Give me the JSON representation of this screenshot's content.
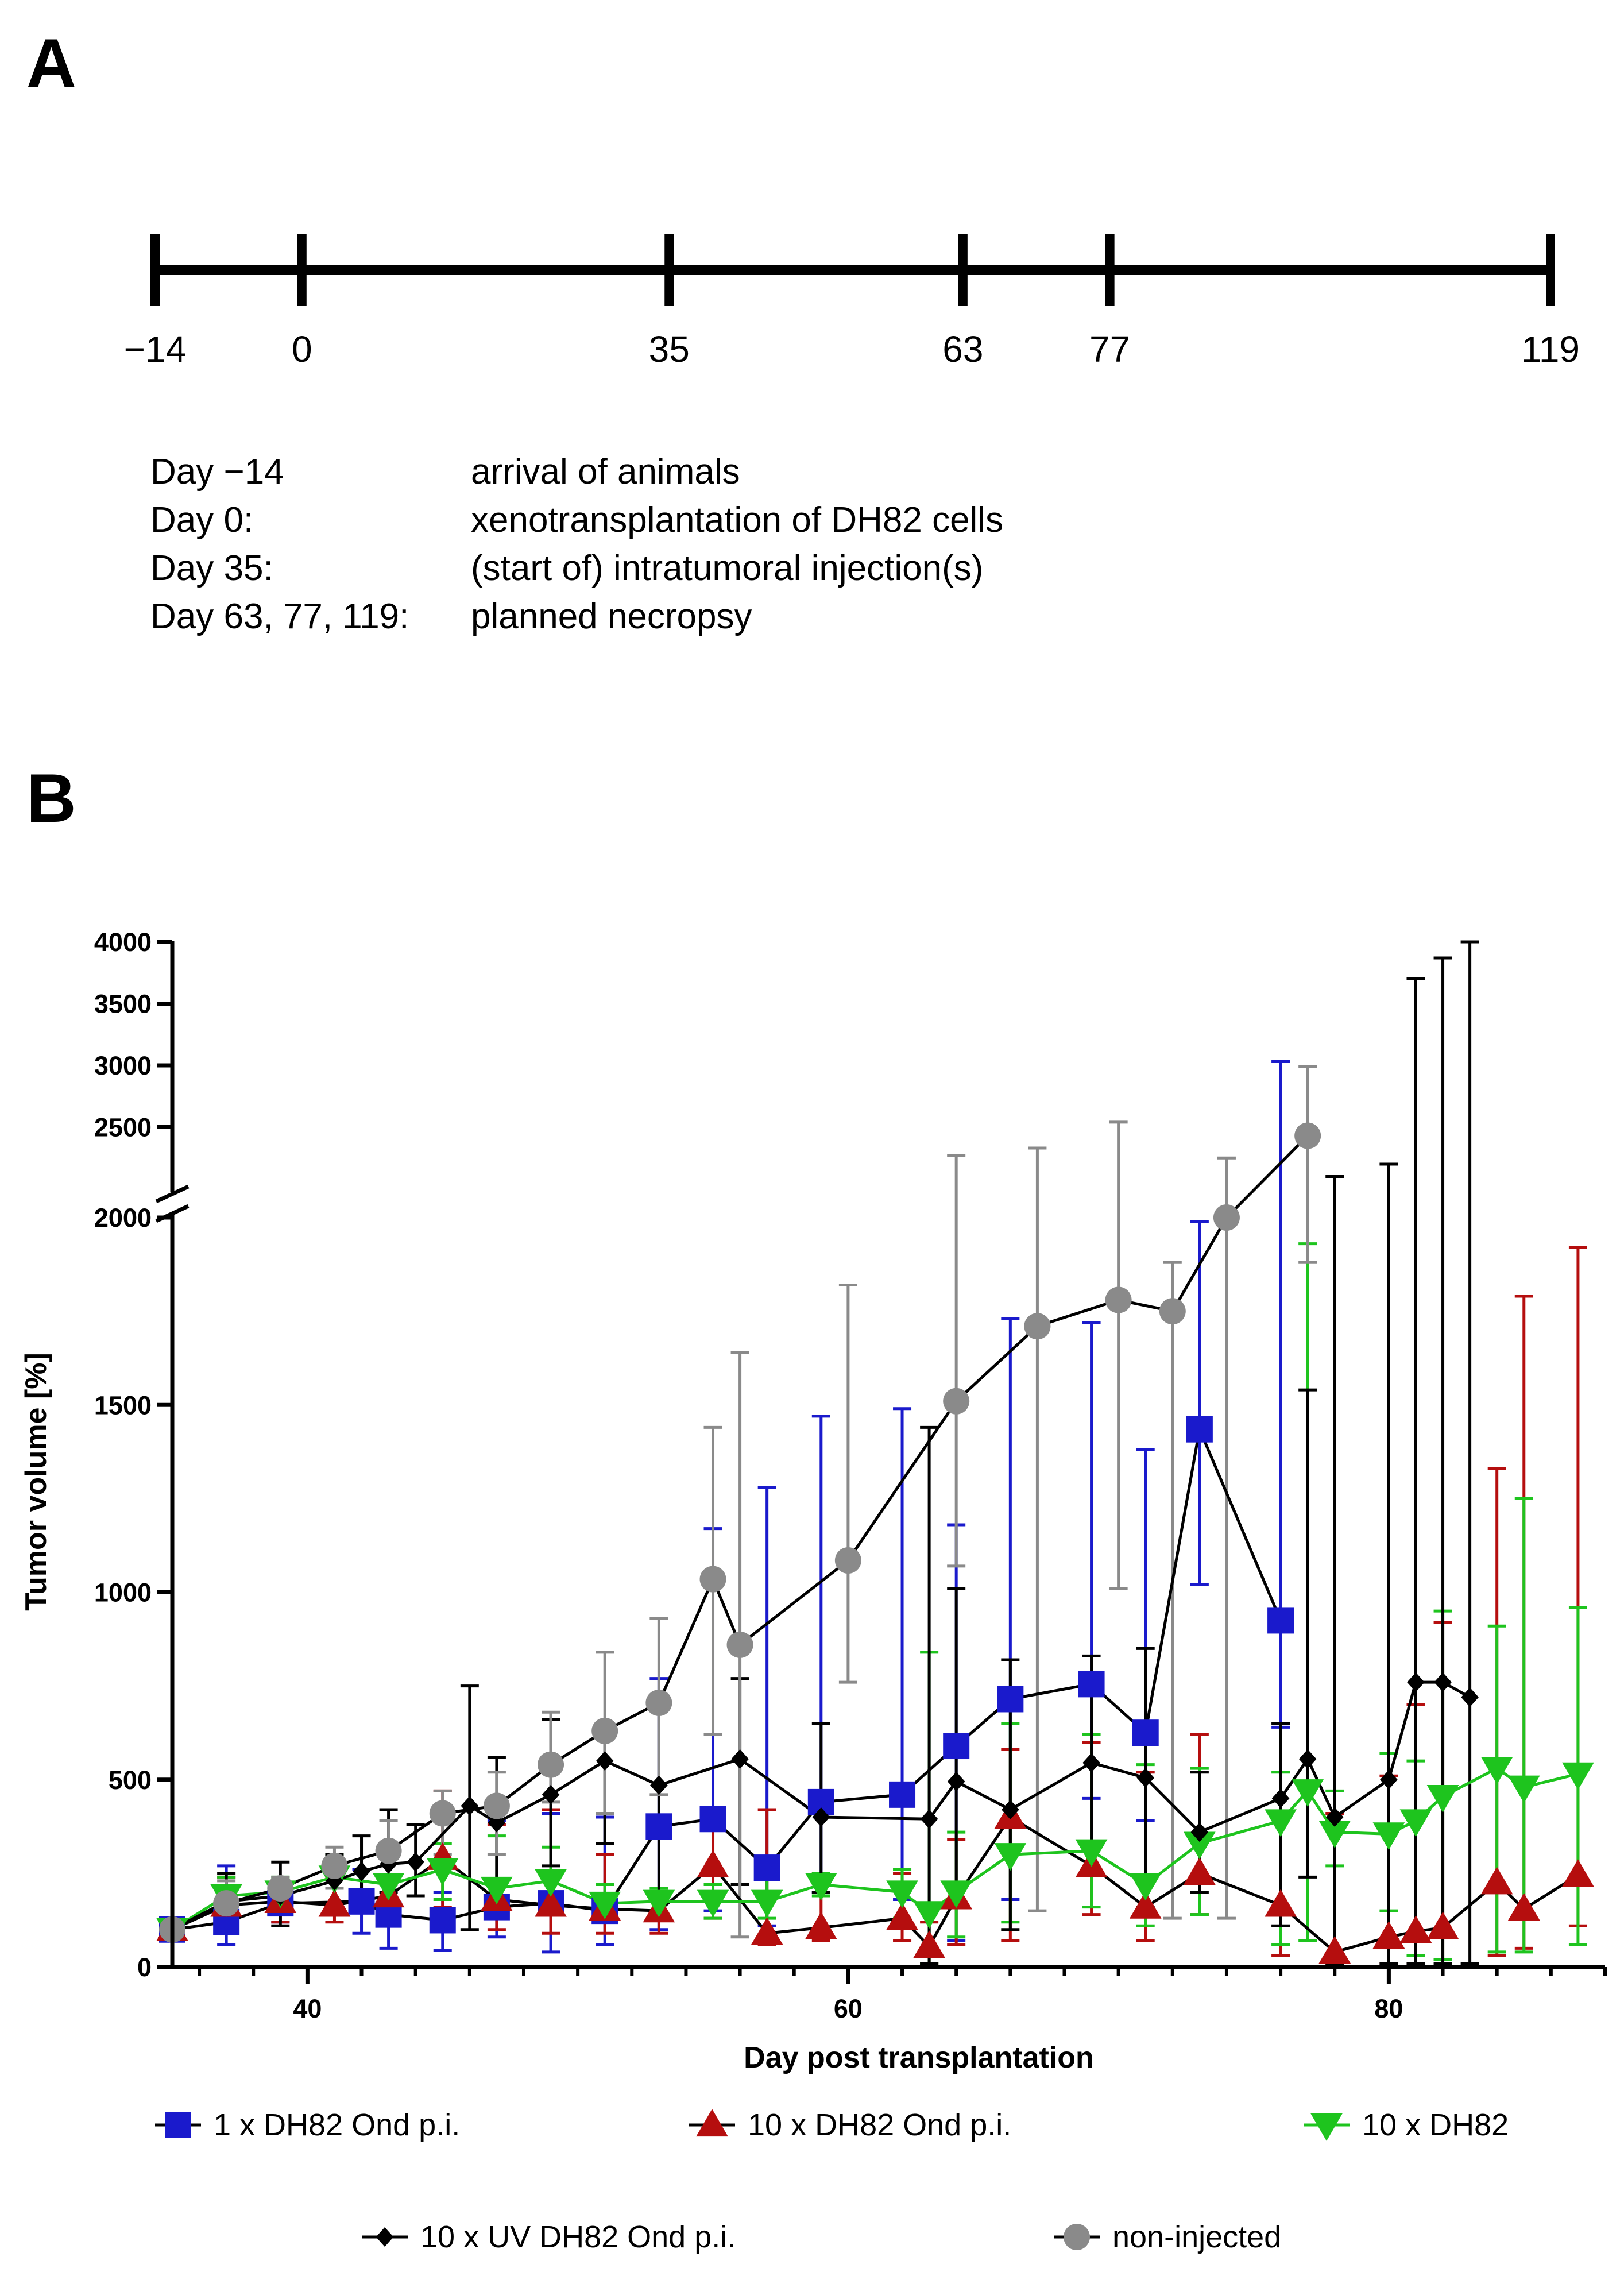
{
  "panel_a": {
    "letter": "A",
    "timeline": {
      "ticks": [
        {
          "value": -14,
          "label": "−14"
        },
        {
          "value": 0,
          "label": "0"
        },
        {
          "value": 35,
          "label": "35"
        },
        {
          "value": 63,
          "label": "63"
        },
        {
          "value": 77,
          "label": "77"
        },
        {
          "value": 119,
          "label": "119"
        }
      ]
    },
    "legend": [
      {
        "day": "Day −14",
        "desc": "arrival of animals"
      },
      {
        "day": "Day 0:",
        "desc": "xenotransplantation of DH82 cells"
      },
      {
        "day": "Day 35:",
        "desc": "(start of) intratumoral injection(s)"
      },
      {
        "day": "Day 63, 77, 119:",
        "desc": "planned necropsy"
      }
    ]
  },
  "panel_b": {
    "letter": "B"
  },
  "chart_data": {
    "type": "line",
    "xlabel": "Day post transplantation",
    "ylabel": "Tumor volume [%]",
    "xlim": [
      35,
      88
    ],
    "x_ticks": [
      40,
      60,
      80
    ],
    "y_axis": {
      "broken": true,
      "lower_range": [
        0,
        2000
      ],
      "upper_range": [
        2000,
        4000
      ],
      "lower_ticks": [
        0,
        500,
        1000,
        1500,
        2000
      ],
      "upper_ticks": [
        2000,
        2500,
        3000,
        3500,
        4000
      ]
    },
    "series": [
      {
        "name": "1 x DH82 Ond p.i.",
        "color": "#1a1acc",
        "marker": "square",
        "points": [
          {
            "x": 35,
            "y": 100,
            "lo": 100,
            "hi": 100
          },
          {
            "x": 37,
            "y": 120,
            "lo": 60,
            "hi": 270
          },
          {
            "x": 39,
            "y": 170,
            "lo": 120,
            "hi": 210
          },
          {
            "x": 42,
            "y": 175,
            "lo": 90,
            "hi": 260
          },
          {
            "x": 43,
            "y": 140,
            "lo": 50,
            "hi": 290
          },
          {
            "x": 45,
            "y": 125,
            "lo": 45,
            "hi": 200
          },
          {
            "x": 47,
            "y": 160,
            "lo": 80,
            "hi": 390
          },
          {
            "x": 49,
            "y": 170,
            "lo": 40,
            "hi": 410
          },
          {
            "x": 51,
            "y": 150,
            "lo": 60,
            "hi": 400
          },
          {
            "x": 53,
            "y": 375,
            "lo": 100,
            "hi": 770
          },
          {
            "x": 55,
            "y": 395,
            "lo": 150,
            "hi": 1170
          },
          {
            "x": 57,
            "y": 265,
            "lo": 110,
            "hi": 1280
          },
          {
            "x": 59,
            "y": 440,
            "lo": 200,
            "hi": 1470
          },
          {
            "x": 62,
            "y": 460,
            "lo": 180,
            "hi": 1490
          },
          {
            "x": 64,
            "y": 590,
            "lo": 70,
            "hi": 1180
          },
          {
            "x": 66,
            "y": 715,
            "lo": 180,
            "hi": 1730
          },
          {
            "x": 69,
            "y": 755,
            "lo": 450,
            "hi": 1720
          },
          {
            "x": 71,
            "y": 625,
            "lo": 390,
            "hi": 1380
          },
          {
            "x": 73,
            "y": 1435,
            "lo": 1020,
            "hi": 1990
          },
          {
            "x": 76,
            "y": 925,
            "lo": 640,
            "hi": 3030
          }
        ]
      },
      {
        "name": "10 x DH82 Ond p.i.",
        "color": "#b50e0e",
        "marker": "triangle-up",
        "points": [
          {
            "x": 35,
            "y": 100,
            "lo": 100,
            "hi": 100
          },
          {
            "x": 37,
            "y": 165,
            "lo": 110,
            "hi": 240
          },
          {
            "x": 39,
            "y": 175,
            "lo": 120,
            "hi": 220
          },
          {
            "x": 41,
            "y": 165,
            "lo": 120,
            "hi": 240
          },
          {
            "x": 43,
            "y": 190,
            "lo": 110,
            "hi": 300
          },
          {
            "x": 45,
            "y": 290,
            "lo": 160,
            "hi": 470
          },
          {
            "x": 47,
            "y": 180,
            "lo": 100,
            "hi": 380
          },
          {
            "x": 49,
            "y": 165,
            "lo": 90,
            "hi": 420
          },
          {
            "x": 51,
            "y": 155,
            "lo": 90,
            "hi": 300
          },
          {
            "x": 53,
            "y": 150,
            "lo": 90,
            "hi": 200
          },
          {
            "x": 55,
            "y": 270,
            "lo": 130,
            "hi": 410
          },
          {
            "x": 57,
            "y": 90,
            "lo": 60,
            "hi": 420
          },
          {
            "x": 59,
            "y": 105,
            "lo": 70,
            "hi": 250
          },
          {
            "x": 62,
            "y": 130,
            "lo": 70,
            "hi": 250
          },
          {
            "x": 63,
            "y": 55,
            "lo": 10,
            "hi": 120
          },
          {
            "x": 64,
            "y": 185,
            "lo": 60,
            "hi": 340
          },
          {
            "x": 66,
            "y": 400,
            "lo": 70,
            "hi": 580
          },
          {
            "x": 69,
            "y": 270,
            "lo": 140,
            "hi": 600
          },
          {
            "x": 71,
            "y": 160,
            "lo": 70,
            "hi": 520
          },
          {
            "x": 73,
            "y": 250,
            "lo": 140,
            "hi": 620
          },
          {
            "x": 76,
            "y": 165,
            "lo": 30,
            "hi": 400
          },
          {
            "x": 78,
            "y": 40,
            "lo": 10,
            "hi": 410
          },
          {
            "x": 80,
            "y": 80,
            "lo": 10,
            "hi": 510
          },
          {
            "x": 81,
            "y": 95,
            "lo": 10,
            "hi": 700
          },
          {
            "x": 82,
            "y": 105,
            "lo": 20,
            "hi": 920
          },
          {
            "x": 84,
            "y": 225,
            "lo": 30,
            "hi": 1330
          },
          {
            "x": 85,
            "y": 155,
            "lo": 50,
            "hi": 1790
          },
          {
            "x": 87,
            "y": 245,
            "lo": 110,
            "hi": 1920
          }
        ]
      },
      {
        "name": "10 x DH82",
        "color": "#1ec41e",
        "marker": "triangle-down",
        "points": [
          {
            "x": 35,
            "y": 100,
            "lo": 100,
            "hi": 100
          },
          {
            "x": 37,
            "y": 190,
            "lo": 140,
            "hi": 240
          },
          {
            "x": 39,
            "y": 200,
            "lo": 150,
            "hi": 240
          },
          {
            "x": 41,
            "y": 240,
            "lo": 170,
            "hi": 300
          },
          {
            "x": 43,
            "y": 220,
            "lo": 150,
            "hi": 310
          },
          {
            "x": 45,
            "y": 260,
            "lo": 180,
            "hi": 330
          },
          {
            "x": 47,
            "y": 210,
            "lo": 150,
            "hi": 350
          },
          {
            "x": 49,
            "y": 230,
            "lo": 160,
            "hi": 320
          },
          {
            "x": 51,
            "y": 170,
            "lo": 120,
            "hi": 220
          },
          {
            "x": 53,
            "y": 175,
            "lo": 130,
            "hi": 210
          },
          {
            "x": 55,
            "y": 175,
            "lo": 130,
            "hi": 220
          },
          {
            "x": 57,
            "y": 175,
            "lo": 130,
            "hi": 250
          },
          {
            "x": 59,
            "y": 220,
            "lo": 190,
            "hi": 250
          },
          {
            "x": 62,
            "y": 200,
            "lo": 130,
            "hi": 260
          },
          {
            "x": 63,
            "y": 145,
            "lo": 10,
            "hi": 840
          },
          {
            "x": 64,
            "y": 200,
            "lo": 80,
            "hi": 360
          },
          {
            "x": 66,
            "y": 300,
            "lo": 120,
            "hi": 650
          },
          {
            "x": 69,
            "y": 310,
            "lo": 160,
            "hi": 620
          },
          {
            "x": 71,
            "y": 220,
            "lo": 110,
            "hi": 540
          },
          {
            "x": 73,
            "y": 330,
            "lo": 140,
            "hi": 530
          },
          {
            "x": 76,
            "y": 390,
            "lo": 60,
            "hi": 520
          },
          {
            "x": 77,
            "y": 470,
            "lo": 70,
            "hi": 1930
          },
          {
            "x": 78,
            "y": 360,
            "lo": 270,
            "hi": 470
          },
          {
            "x": 80,
            "y": 355,
            "lo": 150,
            "hi": 570
          },
          {
            "x": 81,
            "y": 390,
            "lo": 30,
            "hi": 550
          },
          {
            "x": 82,
            "y": 455,
            "lo": 20,
            "hi": 950
          },
          {
            "x": 84,
            "y": 530,
            "lo": 40,
            "hi": 910
          },
          {
            "x": 85,
            "y": 480,
            "lo": 40,
            "hi": 1250
          },
          {
            "x": 87,
            "y": 515,
            "lo": 60,
            "hi": 960
          }
        ]
      },
      {
        "name": "10 x UV DH82 Ond p.i.",
        "color": "#000000",
        "marker": "diamond",
        "points": [
          {
            "x": 35,
            "y": 100,
            "lo": 100,
            "hi": 100
          },
          {
            "x": 37,
            "y": 175,
            "lo": 120,
            "hi": 250
          },
          {
            "x": 39,
            "y": 190,
            "lo": 110,
            "hi": 280
          },
          {
            "x": 41,
            "y": 230,
            "lo": 160,
            "hi": 300
          },
          {
            "x": 42,
            "y": 255,
            "lo": 170,
            "hi": 350
          },
          {
            "x": 43,
            "y": 275,
            "lo": 200,
            "hi": 420
          },
          {
            "x": 44,
            "y": 280,
            "lo": 190,
            "hi": 380
          },
          {
            "x": 46,
            "y": 430,
            "lo": 100,
            "hi": 750
          },
          {
            "x": 47,
            "y": 385,
            "lo": 230,
            "hi": 560
          },
          {
            "x": 49,
            "y": 460,
            "lo": 270,
            "hi": 660
          },
          {
            "x": 51,
            "y": 550,
            "lo": 330,
            "hi": 630
          },
          {
            "x": 53,
            "y": 485,
            "lo": 200,
            "hi": 690
          },
          {
            "x": 56,
            "y": 555,
            "lo": 220,
            "hi": 770
          },
          {
            "x": 59,
            "y": 400,
            "lo": 200,
            "hi": 650
          },
          {
            "x": 63,
            "y": 395,
            "lo": 10,
            "hi": 1440
          },
          {
            "x": 64,
            "y": 495,
            "lo": 180,
            "hi": 1010
          },
          {
            "x": 66,
            "y": 420,
            "lo": 100,
            "hi": 820
          },
          {
            "x": 69,
            "y": 545,
            "lo": 260,
            "hi": 830
          },
          {
            "x": 71,
            "y": 505,
            "lo": 160,
            "hi": 850
          },
          {
            "x": 73,
            "y": 360,
            "lo": 200,
            "hi": 520
          },
          {
            "x": 76,
            "y": 450,
            "lo": 110,
            "hi": 650
          },
          {
            "x": 77,
            "y": 555,
            "lo": 240,
            "hi": 1540
          },
          {
            "x": 78,
            "y": 400,
            "lo": 10,
            "hi": 2100
          },
          {
            "x": 80,
            "y": 500,
            "lo": 10,
            "hi": 2200
          },
          {
            "x": 81,
            "y": 760,
            "lo": 10,
            "hi": 3700
          },
          {
            "x": 82,
            "y": 760,
            "lo": 10,
            "hi": 3870
          },
          {
            "x": 83,
            "y": 720,
            "lo": 10,
            "hi": 4000
          }
        ]
      },
      {
        "name": "non-injected",
        "color": "#8a8a8a",
        "marker": "circle",
        "points": [
          {
            "x": 35,
            "y": 100,
            "lo": 100,
            "hi": 100
          },
          {
            "x": 37,
            "y": 170,
            "lo": 110,
            "hi": 230
          },
          {
            "x": 39,
            "y": 210,
            "lo": 180,
            "hi": 240
          },
          {
            "x": 41,
            "y": 270,
            "lo": 210,
            "hi": 320
          },
          {
            "x": 43,
            "y": 310,
            "lo": 220,
            "hi": 390
          },
          {
            "x": 45,
            "y": 410,
            "lo": 300,
            "hi": 470
          },
          {
            "x": 47,
            "y": 430,
            "lo": 300,
            "hi": 520
          },
          {
            "x": 49,
            "y": 540,
            "lo": 440,
            "hi": 680
          },
          {
            "x": 51,
            "y": 630,
            "lo": 410,
            "hi": 840
          },
          {
            "x": 53,
            "y": 705,
            "lo": 460,
            "hi": 930
          },
          {
            "x": 55,
            "y": 1035,
            "lo": 620,
            "hi": 1440
          },
          {
            "x": 56,
            "y": 860,
            "lo": 80,
            "hi": 1640
          },
          {
            "x": 60,
            "y": 1085,
            "lo": 760,
            "hi": 1820
          },
          {
            "x": 64,
            "y": 1510,
            "lo": 1070,
            "hi": 2270
          },
          {
            "x": 67,
            "y": 1710,
            "lo": 150,
            "hi": 2330
          },
          {
            "x": 70,
            "y": 1780,
            "lo": 1010,
            "hi": 2540
          },
          {
            "x": 72,
            "y": 1750,
            "lo": 130,
            "hi": 1880
          },
          {
            "x": 74,
            "y": 2000,
            "lo": 130,
            "hi": 2250
          },
          {
            "x": 77,
            "y": 2430,
            "lo": 1880,
            "hi": 2990
          }
        ]
      }
    ]
  }
}
